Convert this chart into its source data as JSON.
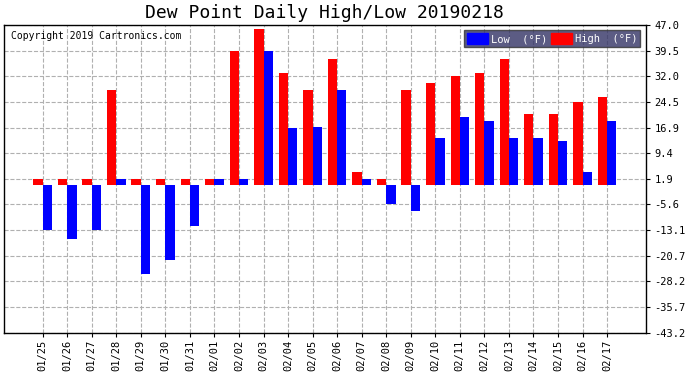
{
  "title": "Dew Point Daily High/Low 20190218",
  "copyright": "Copyright 2019 Cartronics.com",
  "dates": [
    "01/25",
    "01/26",
    "01/27",
    "01/28",
    "01/29",
    "01/30",
    "01/31",
    "02/01",
    "02/02",
    "02/03",
    "02/04",
    "02/05",
    "02/06",
    "02/07",
    "02/08",
    "02/09",
    "02/10",
    "02/11",
    "02/12",
    "02/13",
    "02/14",
    "02/15",
    "02/16",
    "02/17"
  ],
  "high": [
    1.9,
    1.9,
    1.9,
    28.0,
    1.9,
    1.9,
    1.9,
    1.9,
    39.5,
    46.0,
    33.0,
    28.0,
    37.0,
    3.8,
    1.9,
    28.0,
    30.0,
    32.0,
    33.0,
    37.0,
    21.0,
    21.0,
    24.5,
    26.0
  ],
  "low": [
    -13.1,
    -15.8,
    -13.1,
    1.9,
    -26.0,
    -22.0,
    -12.0,
    1.9,
    1.9,
    39.5,
    16.9,
    17.0,
    28.0,
    1.9,
    -5.6,
    -7.6,
    14.0,
    20.0,
    19.0,
    14.0,
    14.0,
    13.1,
    3.8,
    19.0
  ],
  "high_color": "#ff0000",
  "low_color": "#0000ff",
  "ylim": [
    -43.2,
    47.0
  ],
  "yticks": [
    47.0,
    39.5,
    32.0,
    24.5,
    16.9,
    9.4,
    1.9,
    -5.6,
    -13.1,
    -20.7,
    -28.2,
    -35.7,
    -43.2
  ],
  "bg_color": "#ffffff",
  "grid_color": "#b0b0b0",
  "bar_width": 0.38,
  "title_fontsize": 13,
  "legend_low_label": "Low  (°F)",
  "legend_high_label": "High  (°F)"
}
